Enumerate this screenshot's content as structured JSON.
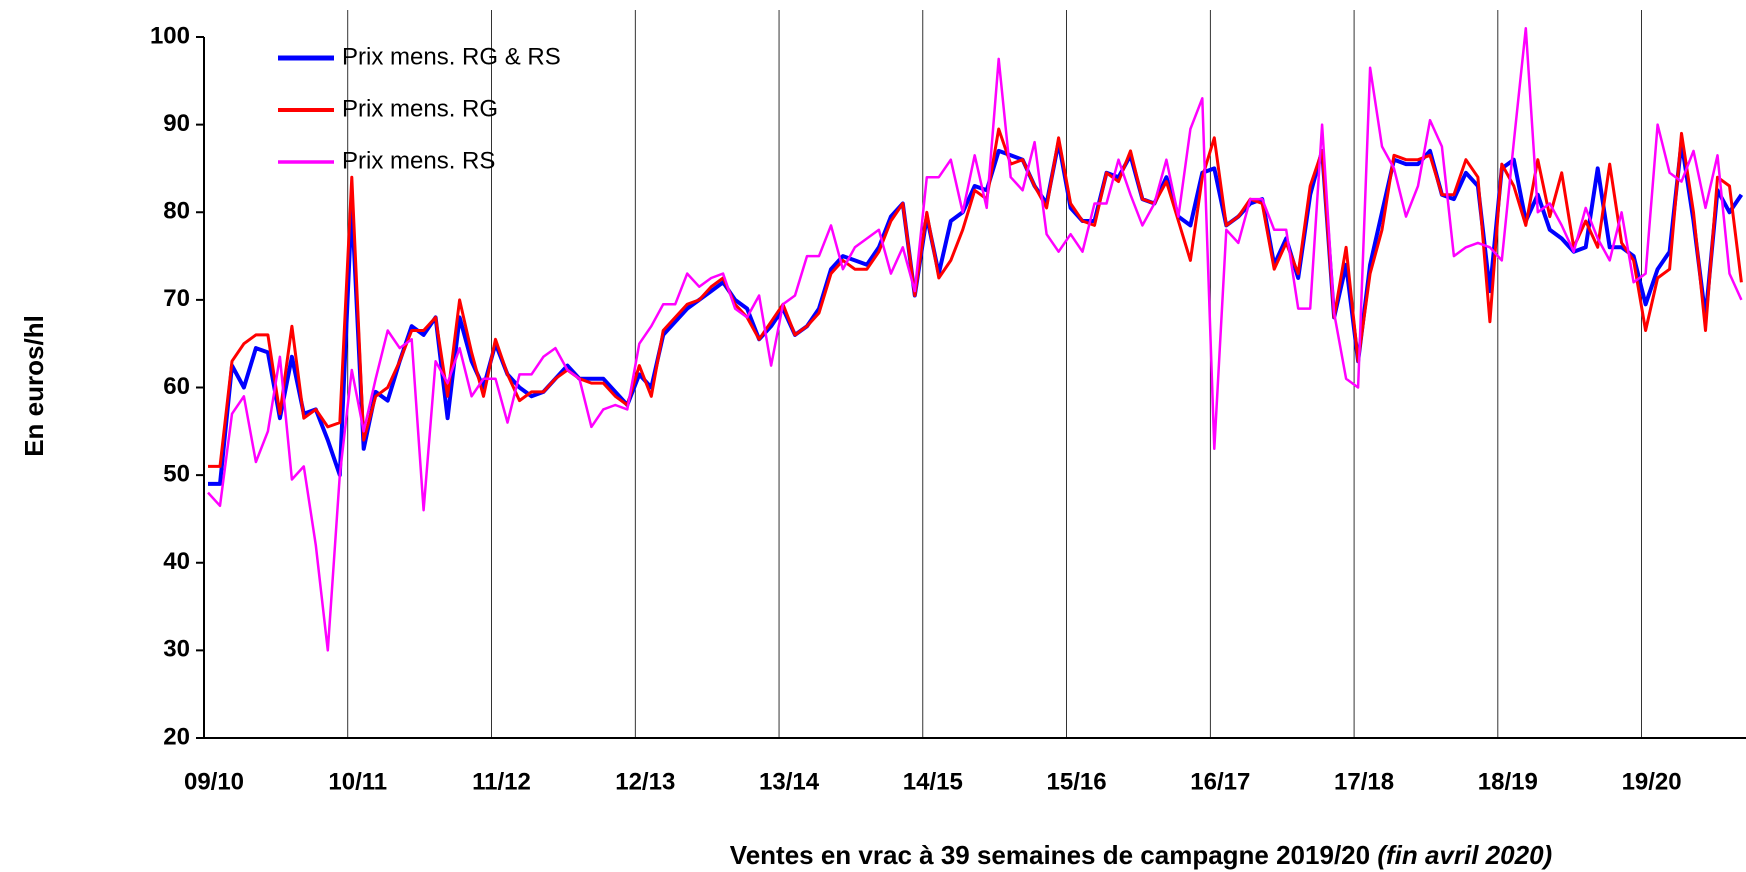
{
  "chart_data": {
    "type": "line",
    "ylabel": "En euros/hl",
    "xlabel": "Ventes en vrac à 39 semaines de campagne 2019/20",
    "xlabel_note": "(fin avril 2020)",
    "categories": [
      "09/10",
      null,
      null,
      null,
      null,
      null,
      null,
      null,
      null,
      null,
      null,
      null,
      "10/11",
      null,
      null,
      null,
      null,
      null,
      null,
      null,
      null,
      null,
      null,
      null,
      "11/12",
      null,
      null,
      null,
      null,
      null,
      null,
      null,
      null,
      null,
      null,
      null,
      "12/13",
      null,
      null,
      null,
      null,
      null,
      null,
      null,
      null,
      null,
      null,
      null,
      "13/14",
      null,
      null,
      null,
      null,
      null,
      null,
      null,
      null,
      null,
      null,
      null,
      "14/15",
      null,
      null,
      null,
      null,
      null,
      null,
      null,
      null,
      null,
      null,
      null,
      "15/16",
      null,
      null,
      null,
      null,
      null,
      null,
      null,
      null,
      null,
      null,
      null,
      "16/17",
      null,
      null,
      null,
      null,
      null,
      null,
      null,
      null,
      null,
      null,
      null,
      "17/18",
      null,
      null,
      null,
      null,
      null,
      null,
      null,
      null,
      null,
      null,
      null,
      "18/19",
      null,
      null,
      null,
      null,
      null,
      null,
      null,
      null,
      null,
      null,
      null,
      "19/20",
      null,
      null,
      null,
      null,
      null,
      null,
      null,
      null
    ],
    "series": [
      {
        "name": "Prix mens. RG & RS",
        "color": "#0000ff",
        "width": 4,
        "values": [
          49,
          49,
          62.5,
          60,
          64.5,
          64,
          56.5,
          63.5,
          57,
          57.5,
          54,
          50,
          81,
          53,
          59.5,
          58.5,
          63,
          67,
          66,
          68,
          56.5,
          68,
          63,
          60,
          65,
          61.5,
          60,
          59,
          59.5,
          61,
          62.5,
          61,
          61,
          61,
          59.5,
          58,
          61.5,
          60,
          66,
          67.5,
          69,
          70,
          71,
          72,
          70,
          69,
          65.5,
          67,
          69,
          66,
          67,
          69,
          73.5,
          75,
          74.5,
          74,
          76,
          79.5,
          81,
          70.5,
          79.5,
          73,
          79,
          80,
          83,
          82.5,
          87,
          86.5,
          86,
          83,
          81,
          88,
          80.5,
          79,
          79,
          84.5,
          84,
          86.5,
          81.5,
          81,
          84,
          79.5,
          78.5,
          84.5,
          85,
          78.5,
          79.5,
          81,
          81.5,
          74,
          77,
          72.5,
          82,
          87,
          68,
          74,
          63,
          74,
          80,
          86,
          85.5,
          85.5,
          87,
          82,
          81.5,
          84.5,
          83,
          71,
          85,
          86,
          79,
          82,
          78,
          77,
          75.5,
          76,
          85,
          76,
          76,
          75,
          69.5,
          73.5,
          75.5,
          88,
          79,
          68,
          82.5,
          80,
          82
        ]
      },
      {
        "name": "Prix mens. RG",
        "color": "#ff0000",
        "width": 3,
        "values": [
          51,
          51,
          63,
          65,
          66,
          66,
          57,
          67,
          56.5,
          57.5,
          55.5,
          56,
          84,
          54,
          59,
          60,
          63,
          66.5,
          66.5,
          68,
          59,
          70,
          64,
          59,
          65.5,
          61.5,
          58.5,
          59.5,
          59.5,
          61,
          62,
          61,
          60.5,
          60.5,
          59,
          58,
          62.5,
          59,
          66.5,
          68,
          69.5,
          70,
          71.5,
          72.5,
          69.5,
          68,
          65.5,
          67.5,
          69.5,
          66,
          67,
          68.5,
          73,
          74.5,
          73.5,
          73.5,
          75.5,
          79,
          81,
          70.5,
          80,
          72.5,
          74.5,
          78,
          82.5,
          81.5,
          89.5,
          85.5,
          86,
          83,
          80.5,
          88.5,
          81,
          79,
          78.5,
          84.5,
          83.5,
          87,
          81.5,
          81,
          83.5,
          79,
          74.5,
          84,
          88.5,
          78.5,
          79.5,
          81.5,
          81,
          73.5,
          76.5,
          73,
          83,
          87,
          68,
          76,
          63,
          73,
          78,
          86.5,
          86,
          86,
          86.5,
          82,
          82,
          86,
          84,
          67.5,
          85.5,
          83,
          78.5,
          86,
          79.5,
          84.5,
          76,
          79,
          76,
          85.5,
          76.5,
          74.5,
          66.5,
          72.5,
          73.5,
          89,
          80,
          66.5,
          84,
          83,
          72
        ]
      },
      {
        "name": "Prix mens. RS",
        "color": "#ff00ff",
        "width": 2.5,
        "values": [
          48,
          46.5,
          57,
          59,
          51.5,
          55,
          63.5,
          49.5,
          51,
          42,
          30,
          50,
          62,
          55,
          61,
          66.5,
          64.5,
          65.5,
          46,
          63,
          60.5,
          64.5,
          59,
          61,
          61,
          56,
          61.5,
          61.5,
          63.5,
          64.5,
          62,
          61,
          55.5,
          57.5,
          58,
          57.5,
          65,
          67,
          69.5,
          69.5,
          73,
          71.5,
          72.5,
          73,
          69,
          68,
          70.5,
          62.5,
          69.5,
          70.5,
          75,
          75,
          78.5,
          73.5,
          76,
          77,
          78,
          73,
          76,
          71,
          84,
          84,
          86,
          80,
          86.5,
          80.5,
          97.5,
          84,
          82.5,
          88,
          77.5,
          75.5,
          77.5,
          75.5,
          81,
          81,
          86,
          82,
          78.5,
          81,
          86,
          79.5,
          89.5,
          93,
          53,
          78,
          76.5,
          81.5,
          81.5,
          78,
          78,
          69,
          69,
          90,
          68.5,
          61,
          60,
          96.5,
          87.5,
          85,
          79.5,
          83,
          90.5,
          87.5,
          75,
          76,
          76.5,
          76,
          74.5,
          88,
          101,
          80,
          81,
          78.5,
          75.5,
          80.5,
          77,
          74.5,
          80,
          72,
          73,
          90,
          84.5,
          83.5,
          87,
          80.5,
          86.5,
          73,
          70
        ]
      }
    ],
    "ylim": [
      20,
      100
    ],
    "yticks": [
      20,
      30,
      40,
      50,
      60,
      70,
      80,
      90,
      100
    ],
    "legend": "top-left"
  }
}
